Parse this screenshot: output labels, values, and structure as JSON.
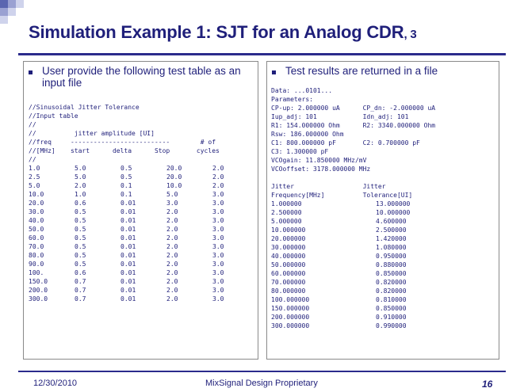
{
  "slide": {
    "title": "Simulation Example 1: SJT for an Analog CDR",
    "title_suffix": ", 3"
  },
  "left_panel": {
    "bullet": "User provide the following test table as an input file",
    "lines": [
      "//Sinusoidal Jitter Tolerance",
      "//Input table",
      "//",
      "//          jitter amplitude [UI]",
      "//freq     --------------------------        # of",
      "//[MHz]    start      delta      Stop       cycles",
      "//"
    ],
    "rows": [
      [
        "1.0",
        "5.0",
        "0.5",
        "20.0",
        "2.0"
      ],
      [
        "2.5",
        "5.0",
        "0.5",
        "20.0",
        "2.0"
      ],
      [
        "5.0",
        "2.0",
        "0.1",
        "10.0",
        "2.0"
      ],
      [
        "10.0",
        "1.0",
        "0.1",
        "5.0",
        "3.0"
      ],
      [
        "20.0",
        "0.6",
        "0.01",
        "3.0",
        "3.0"
      ],
      [
        "30.0",
        "0.5",
        "0.01",
        "2.0",
        "3.0"
      ],
      [
        "40.0",
        "0.5",
        "0.01",
        "2.0",
        "3.0"
      ],
      [
        "50.0",
        "0.5",
        "0.01",
        "2.0",
        "3.0"
      ],
      [
        "60.0",
        "0.5",
        "0.01",
        "2.0",
        "3.0"
      ],
      [
        "70.0",
        "0.5",
        "0.01",
        "2.0",
        "3.0"
      ],
      [
        "80.0",
        "0.5",
        "0.01",
        "2.0",
        "3.0"
      ],
      [
        "90.0",
        "0.5",
        "0.01",
        "2.0",
        "3.0"
      ],
      [
        "100.",
        "0.6",
        "0.01",
        "2.0",
        "3.0"
      ],
      [
        "150.0",
        "0.7",
        "0.01",
        "2.0",
        "3.0"
      ],
      [
        "200.0",
        "0.7",
        "0.01",
        "2.0",
        "3.0"
      ],
      [
        "300.0",
        "0.7",
        "0.01",
        "2.0",
        "3.0"
      ]
    ]
  },
  "right_panel": {
    "bullet": "Test results are returned in a file",
    "lines": [
      "Data: ...0101...",
      "Parameters:",
      "CP-up: 2.000000 uA      CP_dn: -2.000000 uA",
      "Iup_adj: 101            Idn_adj: 101",
      "R1: 154.000000 Ohm      R2: 3340.000000 Ohm",
      "Rsw: 186.000000 Ohm",
      "C1: 800.000000 pF       C2: 0.700000 pF",
      "C3: 1.300000 pF",
      "VCOgain: 11.850000 MHz/mV",
      "VCOoffset: 3178.000000 MHz",
      "",
      "Jitter                  Jitter",
      "Frequency[MHz]          Tolerance[UI]"
    ],
    "rows": [
      [
        "1.000000",
        "13.000000"
      ],
      [
        "2.500000",
        "10.000000"
      ],
      [
        "5.000000",
        "4.600000"
      ],
      [
        "10.000000",
        "2.500000"
      ],
      [
        "20.000000",
        "1.420000"
      ],
      [
        "30.000000",
        "1.080000"
      ],
      [
        "40.000000",
        "0.950000"
      ],
      [
        "50.000000",
        "0.880000"
      ],
      [
        "60.000000",
        "0.850000"
      ],
      [
        "70.000000",
        "0.820000"
      ],
      [
        "80.000000",
        "0.820000"
      ],
      [
        "100.000000",
        "0.810000"
      ],
      [
        "150.000000",
        "0.850000"
      ],
      [
        "200.000000",
        "0.910000"
      ],
      [
        "300.000000",
        "0.990000"
      ]
    ]
  },
  "footer": {
    "date": "12/30/2010",
    "center": "MixSignal Design  Proprietary",
    "page": "16"
  },
  "colors": {
    "title": "#1f1f7a",
    "rule": "#2b2b8c"
  }
}
